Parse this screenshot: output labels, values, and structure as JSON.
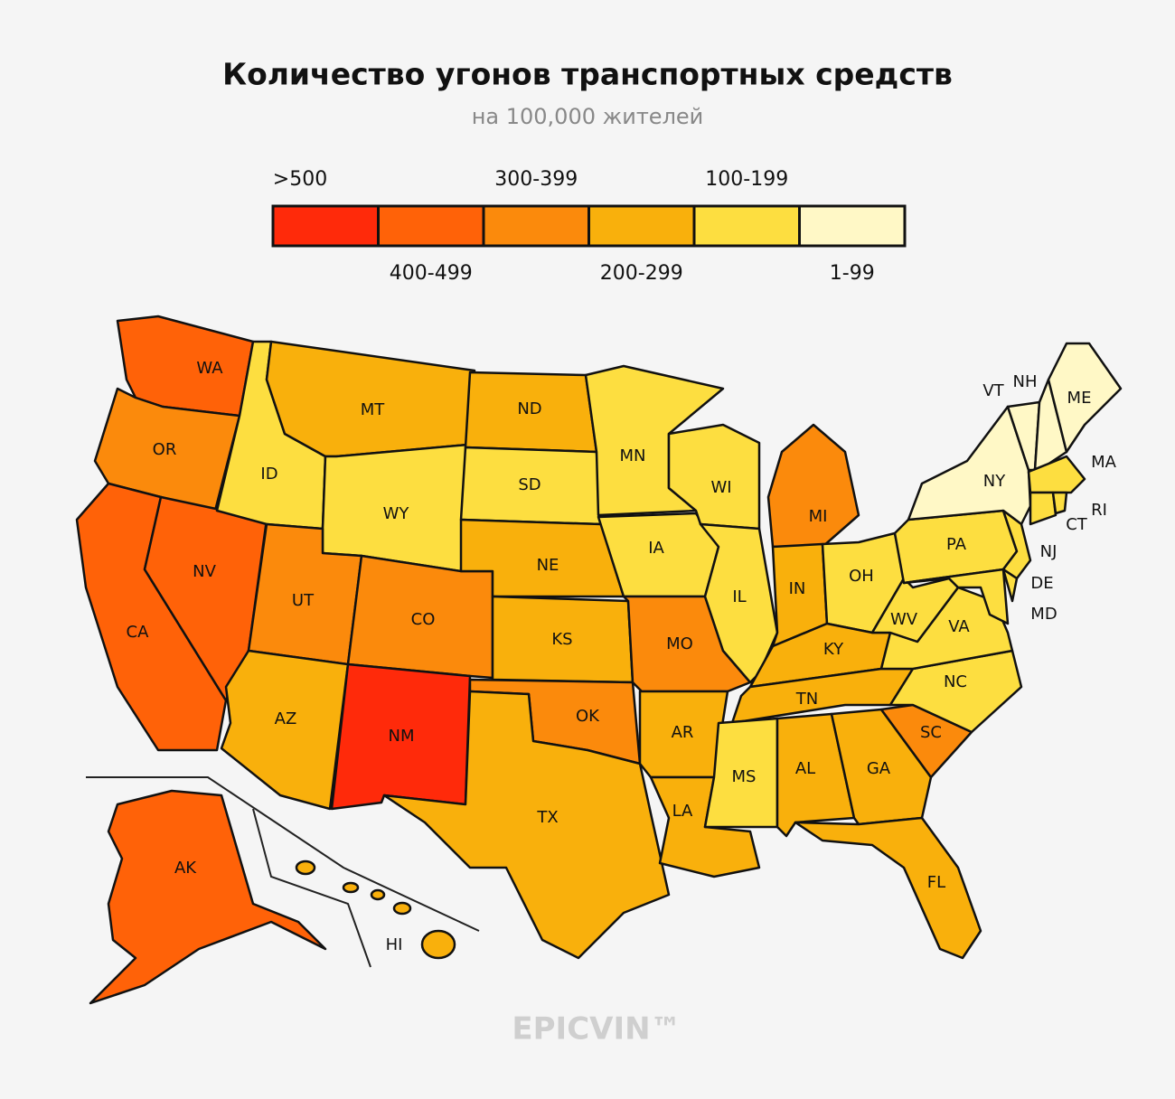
{
  "title": "Количество угонов транспортных средств",
  "subtitle": "на 100,000 жителей",
  "legend": [
    {
      "label": ">500",
      "color": "#ff2a0a"
    },
    {
      "label": "400-499",
      "color": "#ff6208"
    },
    {
      "label": "300-399",
      "color": "#fb8a0c"
    },
    {
      "label": "200-299",
      "color": "#f9b00c"
    },
    {
      "label": "100-199",
      "color": "#fdde40"
    },
    {
      "label": "1-99",
      "color": "#fff8c6"
    }
  ],
  "states": [
    {
      "label": "WA",
      "bin": 1
    },
    {
      "label": "OR",
      "bin": 2
    },
    {
      "label": "CA",
      "bin": 1
    },
    {
      "label": "NV",
      "bin": 1
    },
    {
      "label": "ID",
      "bin": 4
    },
    {
      "label": "MT",
      "bin": 3
    },
    {
      "label": "WY",
      "bin": 4
    },
    {
      "label": "UT",
      "bin": 2
    },
    {
      "label": "CO",
      "bin": 2
    },
    {
      "label": "AZ",
      "bin": 3
    },
    {
      "label": "NM",
      "bin": 0
    },
    {
      "label": "ND",
      "bin": 3
    },
    {
      "label": "SD",
      "bin": 4
    },
    {
      "label": "NE",
      "bin": 3
    },
    {
      "label": "KS",
      "bin": 3
    },
    {
      "label": "OK",
      "bin": 2
    },
    {
      "label": "TX",
      "bin": 3
    },
    {
      "label": "MN",
      "bin": 4
    },
    {
      "label": "IA",
      "bin": 4
    },
    {
      "label": "MO",
      "bin": 2
    },
    {
      "label": "AR",
      "bin": 3
    },
    {
      "label": "LA",
      "bin": 3
    },
    {
      "label": "WI",
      "bin": 4
    },
    {
      "label": "IL",
      "bin": 4
    },
    {
      "label": "MI",
      "bin": 2
    },
    {
      "label": "IN",
      "bin": 3
    },
    {
      "label": "OH",
      "bin": 4
    },
    {
      "label": "KY",
      "bin": 3
    },
    {
      "label": "TN",
      "bin": 3
    },
    {
      "label": "MS",
      "bin": 4
    },
    {
      "label": "AL",
      "bin": 3
    },
    {
      "label": "GA",
      "bin": 3
    },
    {
      "label": "FL",
      "bin": 3
    },
    {
      "label": "SC",
      "bin": 2
    },
    {
      "label": "NC",
      "bin": 4
    },
    {
      "label": "VA",
      "bin": 4
    },
    {
      "label": "WV",
      "bin": 4
    },
    {
      "label": "PA",
      "bin": 4
    },
    {
      "label": "NY",
      "bin": 5
    },
    {
      "label": "NJ",
      "bin": 4
    },
    {
      "label": "MD",
      "bin": 4
    },
    {
      "label": "DE",
      "bin": 4
    },
    {
      "label": "VT",
      "bin": 5
    },
    {
      "label": "NH",
      "bin": 5
    },
    {
      "label": "ME",
      "bin": 5
    },
    {
      "label": "MA",
      "bin": 4
    },
    {
      "label": "CT",
      "bin": 4
    },
    {
      "label": "RI",
      "bin": 4
    },
    {
      "label": "AK",
      "bin": 1
    },
    {
      "label": "HI",
      "bin": 3
    }
  ],
  "brand": "EPICVIN™"
}
